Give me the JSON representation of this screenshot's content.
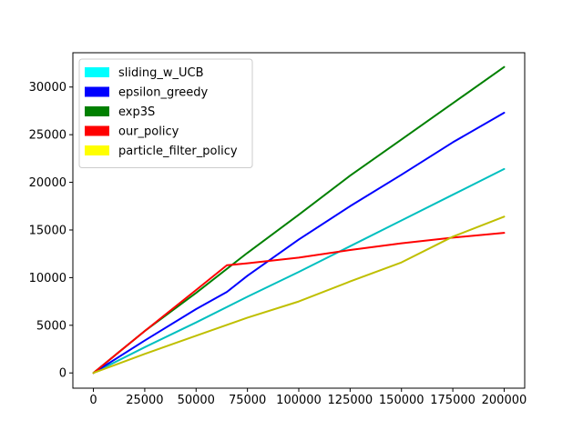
{
  "chart_data": {
    "type": "line",
    "title": "",
    "xlabel": "",
    "ylabel": "",
    "xlim": [
      -10000,
      210000
    ],
    "ylim": [
      -1600,
      33600
    ],
    "xticks": [
      0,
      25000,
      50000,
      75000,
      100000,
      125000,
      150000,
      175000,
      200000
    ],
    "xtick_labels": [
      "0",
      "25000",
      "50000",
      "75000",
      "100000",
      "125000",
      "150000",
      "175000",
      "200000"
    ],
    "yticks": [
      0,
      5000,
      10000,
      15000,
      20000,
      25000,
      30000
    ],
    "ytick_labels": [
      "0",
      "5000",
      "10000",
      "15000",
      "20000",
      "25000",
      "30000"
    ],
    "grid": false,
    "legend_position": "upper left",
    "series": [
      {
        "name": "sliding_w_UCB",
        "color": "#00bfbf",
        "legend_color": "#00ffff",
        "x": [
          0,
          25000,
          50000,
          75000,
          100000,
          125000,
          150000,
          175000,
          200000
        ],
        "y": [
          0,
          2700,
          5300,
          8000,
          10600,
          13300,
          16000,
          18700,
          21400
        ]
      },
      {
        "name": "epsilon_greedy",
        "color": "#0000ff",
        "legend_color": "#0000ff",
        "x": [
          0,
          25000,
          50000,
          65000,
          75000,
          100000,
          125000,
          150000,
          175000,
          200000
        ],
        "y": [
          0,
          3400,
          6700,
          8500,
          10200,
          14000,
          17500,
          20800,
          24200,
          27300
        ]
      },
      {
        "name": "exp3S",
        "color": "#008000",
        "legend_color": "#008000",
        "x": [
          0,
          25000,
          50000,
          75000,
          100000,
          125000,
          150000,
          175000,
          200000
        ],
        "y": [
          0,
          4400,
          8400,
          12600,
          16600,
          20700,
          24500,
          28300,
          32100
        ]
      },
      {
        "name": "our_policy",
        "color": "#ff0000",
        "legend_color": "#ff0000",
        "x": [
          0,
          25000,
          50000,
          65000,
          75000,
          100000,
          125000,
          150000,
          175000,
          200000
        ],
        "y": [
          0,
          4400,
          8700,
          11300,
          11500,
          12100,
          12900,
          13600,
          14200,
          14700
        ]
      },
      {
        "name": "particle_filter_policy",
        "color": "#bfbf00",
        "legend_color": "#ffff00",
        "x": [
          0,
          25000,
          50000,
          75000,
          100000,
          125000,
          150000,
          175000,
          200000
        ],
        "y": [
          0,
          2000,
          3900,
          5800,
          7500,
          9600,
          11600,
          14300,
          16400
        ]
      }
    ]
  }
}
